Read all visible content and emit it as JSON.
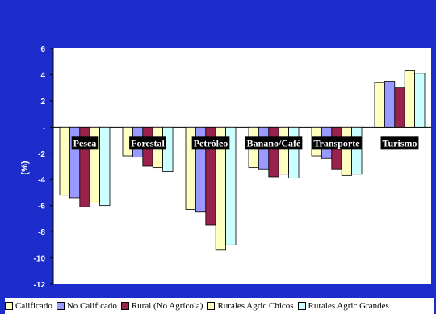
{
  "chart_data": {
    "type": "bar",
    "title": "",
    "xlabel": "",
    "ylabel": "(%)",
    "ylim": [
      -12,
      6
    ],
    "yticks": [
      "6",
      "4",
      "2",
      "-",
      "-2",
      "-4",
      "-6",
      "-8",
      "-10",
      "-12"
    ],
    "grid": false,
    "legend_position": "bottom",
    "categories": [
      "Pesca",
      "Forestal",
      "Petróleo",
      "Banano/Café",
      "Transporte",
      "Turismo"
    ],
    "series": [
      {
        "name": "Calificado",
        "color": "#ffffc0",
        "values": [
          -5.2,
          -2.2,
          -6.3,
          -3.1,
          -2.2,
          3.4
        ]
      },
      {
        "name": "No Calificado",
        "color": "#9999ff",
        "values": [
          -5.4,
          -2.3,
          -6.5,
          -3.2,
          -2.4,
          3.5
        ]
      },
      {
        "name": "Rural (No Agrícola)",
        "color": "#99224c",
        "values": [
          -6.1,
          -3.0,
          -7.5,
          -3.8,
          -3.2,
          3.0
        ]
      },
      {
        "name": "Rurales Agric Chicos",
        "color": "#ffffc0",
        "values": [
          -5.8,
          -3.1,
          -9.4,
          -3.6,
          -3.7,
          4.3
        ]
      },
      {
        "name": "Rurales Agric Grandes",
        "color": "#ccffff",
        "values": [
          -6.0,
          -3.4,
          -9.0,
          -3.9,
          -3.6,
          4.1
        ]
      }
    ],
    "colors": {
      "plot_background": "#ffffff",
      "frame": "#1c2dcc",
      "category_label_bg": "#000000"
    }
  }
}
